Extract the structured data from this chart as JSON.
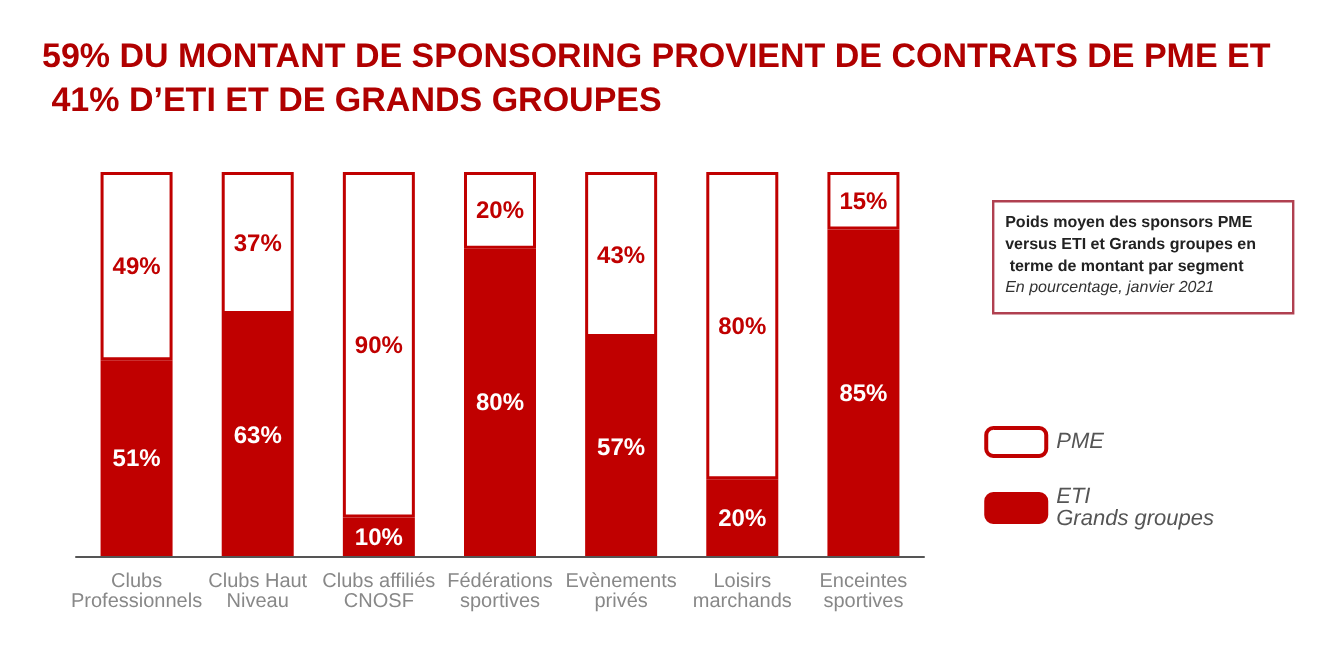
{
  "chart_data": {
    "type": "bar",
    "stacked": true,
    "title": "59% DU MONTANT DE SPONSORING PROVIENT DE CONTRATS DE PME ET 41% D’ETI ET DE GRANDS GROUPES",
    "subtitle": "Poids moyen des sponsors PME versus ETI et Grands groupes en terme de montant par segment",
    "annotations": [
      "En pourcentage, janvier 2021"
    ],
    "categories": [
      "Clubs\nProfessionnels",
      "Clubs Haut\nNiveau",
      "Clubs affiliés\nCNOSF",
      "Fédérations\nsportives",
      "Evènements\nprivés",
      "Loisirs\nmarchands",
      "Enceintes\nsportives"
    ],
    "series": [
      {
        "name": "ETI\nGrands groupes",
        "color": "#c00000",
        "values": [
          51,
          63,
          10,
          80,
          57,
          20,
          85
        ],
        "value_labels": [
          "51%",
          "63%",
          "10%",
          "80%",
          "57%",
          "20%",
          "85%"
        ]
      },
      {
        "name": "PME",
        "color": "#ffffff",
        "values": [
          49,
          37,
          90,
          20,
          43,
          80,
          15
        ],
        "value_labels": [
          "49%",
          "37%",
          "90%",
          "20%",
          "43%",
          "80%",
          "15%"
        ]
      }
    ],
    "legend": "right"
  }
}
